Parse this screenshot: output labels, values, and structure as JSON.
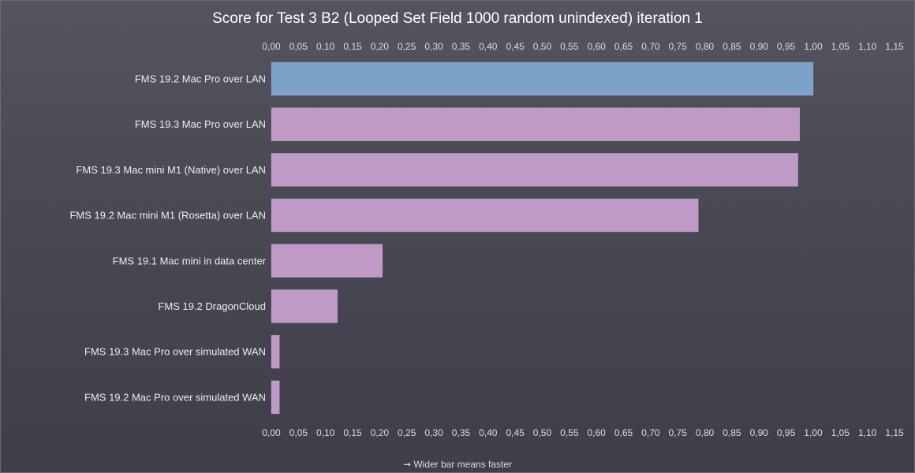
{
  "chart_data": {
    "type": "bar",
    "orientation": "horizontal",
    "title": "Score for Test 3 B2 (Looped Set Field 1000 random unindexed) iteration 1",
    "xlabel": "",
    "ylabel": "",
    "xlim": [
      0,
      1.15
    ],
    "tick_labels": [
      "0,00",
      "0,05",
      "0,10",
      "0,15",
      "0,20",
      "0,25",
      "0,30",
      "0,35",
      "0,40",
      "0,45",
      "0,50",
      "0,55",
      "0,60",
      "0,65",
      "0,70",
      "0,75",
      "0,80",
      "0,85",
      "0,90",
      "0,95",
      "1,00",
      "1,05",
      "1,10",
      "1,15"
    ],
    "tick_positions": "top-and-bottom",
    "grid": false,
    "categories": [
      "FMS 19.2 Mac Pro over LAN",
      "FMS 19.3 Mac Pro over LAN",
      "FMS 19.3 Mac mini M1 (Native) over LAN",
      "FMS 19.2 Mac mini M1 (Rosetta) over LAN",
      "FMS 19.1 Mac mini in data center",
      "FMS 19.2 DragonCloud",
      "FMS 19.3 Mac Pro over simulated WAN",
      "FMS 19.2 Mac Pro over simulated WAN"
    ],
    "values": [
      1.0,
      0.975,
      0.972,
      0.788,
      0.205,
      0.122,
      0.015,
      0.015
    ],
    "colors": [
      "#7ba3c9",
      "#c09ac6",
      "#c09ac6",
      "#c09ac6",
      "#c09ac6",
      "#c09ac6",
      "#c09ac6",
      "#c09ac6"
    ],
    "footnote": "➞ Wider bar means faster"
  },
  "colors": {
    "highlight_bar": "#7ba3c9",
    "bar": "#c09ac6",
    "background": "#4a4a56",
    "text": "#ffffff"
  }
}
